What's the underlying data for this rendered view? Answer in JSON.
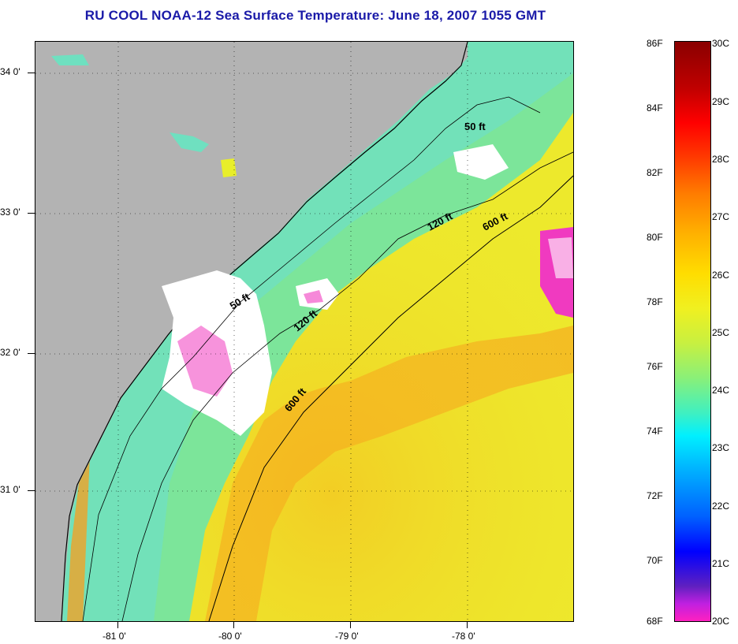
{
  "title": "RU COOL  NOAA-12  Sea Surface Temperature:  June 18, 2007 1055 GMT",
  "map": {
    "lat_labels": [
      "34 0'",
      "33 0'",
      "32 0'",
      "31 0'"
    ],
    "lon_labels": [
      "-81 0'",
      "-80 0'",
      "-79 0'",
      "-78 0'"
    ],
    "contours": [
      "50 ft",
      "120 ft",
      "600 ft",
      "50 ft",
      "120 ft",
      "600 ft"
    ],
    "colors": {
      "land": "#b3b3b3",
      "cloud": "#ffffff",
      "warm": "#f5a21a",
      "mid": "#e8ee2a",
      "cool": "#6fe9b0"
    }
  },
  "colorbar": {
    "fahrenheit": [
      "86F",
      "84F",
      "82F",
      "80F",
      "78F",
      "76F",
      "74F",
      "72F",
      "70F",
      "68F"
    ],
    "celsius": [
      "30C",
      "29C",
      "28C",
      "27C",
      "26C",
      "25C",
      "24C",
      "23C",
      "22C",
      "21C",
      "20C"
    ]
  }
}
